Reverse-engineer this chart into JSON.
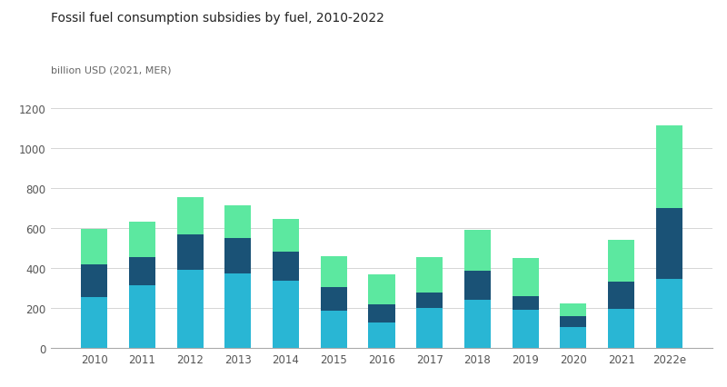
{
  "title": "Fossil fuel consumption subsidies by fuel, 2010-2022",
  "ylabel": "billion USD (2021, MER)",
  "years": [
    "2010",
    "2011",
    "2012",
    "2013",
    "2014",
    "2015",
    "2016",
    "2017",
    "2018",
    "2019",
    "2020",
    "2021",
    "2022e"
  ],
  "cyan": [
    255,
    315,
    390,
    375,
    335,
    185,
    130,
    200,
    240,
    190,
    105,
    195,
    345
  ],
  "dark_blue": [
    165,
    140,
    180,
    175,
    148,
    120,
    90,
    80,
    145,
    70,
    55,
    135,
    355
  ],
  "green": [
    175,
    175,
    185,
    165,
    160,
    155,
    150,
    175,
    205,
    190,
    65,
    210,
    410
  ],
  "color_cyan": "#29b6d4",
  "color_dark_blue": "#1a5276",
  "color_green": "#5ce8a0",
  "ylim": [
    0,
    1200
  ],
  "yticks": [
    0,
    200,
    400,
    600,
    800,
    1000,
    1200
  ],
  "background_color": "#ffffff",
  "grid_color": "#d5d5d5",
  "bar_width": 0.55,
  "title_fontsize": 10,
  "ylabel_fontsize": 8,
  "tick_fontsize": 8.5
}
